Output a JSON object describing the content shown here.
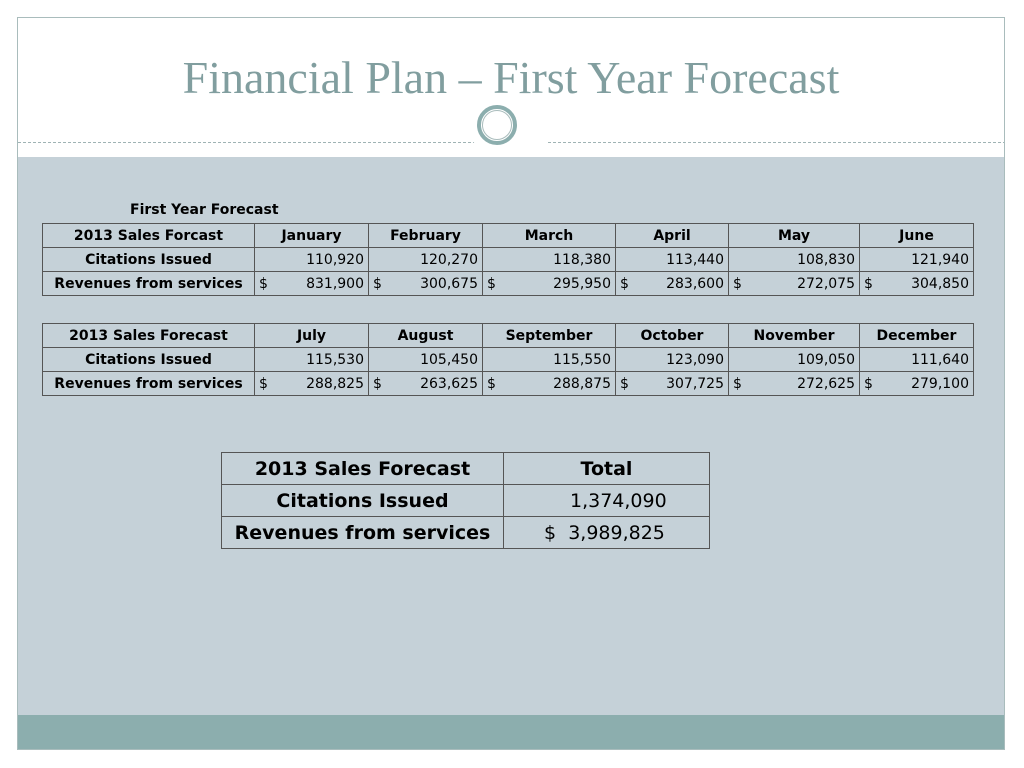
{
  "slide": {
    "title": "Financial Plan – First Year Forecast"
  },
  "caption": "First Year Forecast",
  "table_first_half": {
    "header_label": "2013 Sales Forcast",
    "months": [
      "January",
      "February",
      "March",
      "April",
      "May",
      "June"
    ],
    "rows": [
      {
        "label": "Citations Issued",
        "currency": "",
        "values": [
          "110,920",
          "120,270",
          "118,380",
          "113,440",
          "108,830",
          "121,940"
        ]
      },
      {
        "label": "Revenues from services",
        "currency": "$",
        "values": [
          "831,900",
          "300,675",
          "295,950",
          "283,600",
          "272,075",
          "304,850"
        ]
      }
    ]
  },
  "table_second_half": {
    "header_label": "2013 Sales Forecast",
    "months": [
      "July",
      "August",
      "September",
      "October",
      "November",
      "December"
    ],
    "rows": [
      {
        "label": "Citations Issued",
        "currency": "",
        "values": [
          "115,530",
          "105,450",
          "115,550",
          "123,090",
          "109,050",
          "111,640"
        ]
      },
      {
        "label": "Revenues from services",
        "currency": "$",
        "values": [
          "288,825",
          "263,625",
          "288,875",
          "307,725",
          "272,625",
          "279,100"
        ]
      }
    ]
  },
  "totals": {
    "header_label": "2013 Sales Forecast",
    "total_label": "Total",
    "citations_label": "Citations Issued",
    "citations_total": "1,374,090",
    "revenues_label": "Revenues from services",
    "revenues_currency": "$",
    "revenues_total": "3,989,825"
  },
  "colors": {
    "title": "#819e9f",
    "content_background": "#c5d1d8",
    "accent_band": "#8caeae"
  }
}
